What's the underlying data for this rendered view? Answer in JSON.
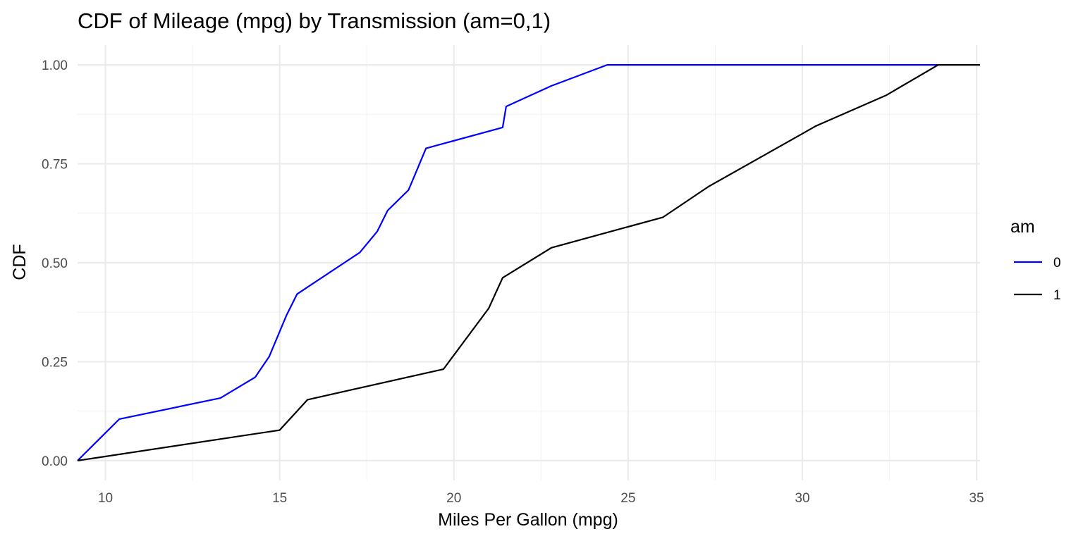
{
  "chart_data": {
    "type": "line",
    "title": "CDF of Mileage (mpg) by Transmission (am=0,1)",
    "xlabel": "Miles Per Gallon (mpg)",
    "ylabel": "CDF",
    "xlim": [
      9.2,
      35.1
    ],
    "ylim": [
      -0.05,
      1.05
    ],
    "x_ticks": [
      10,
      15,
      20,
      25,
      30,
      35
    ],
    "y_ticks": [
      0,
      0.25,
      0.5,
      0.75,
      1
    ],
    "x_tick_labels": [
      "10",
      "15",
      "20",
      "25",
      "30",
      "35"
    ],
    "y_tick_labels": [
      "0.00",
      "0.25",
      "0.50",
      "0.75",
      "1.00"
    ],
    "grid": true,
    "legend": {
      "title": "am",
      "position": "right",
      "entries": [
        {
          "label": "0",
          "color": "#0000ff"
        },
        {
          "label": "1",
          "color": "#000000"
        }
      ]
    },
    "series": [
      {
        "name": "0",
        "color": "#0000ff",
        "x": [
          9.2,
          10.4,
          13.3,
          14.3,
          14.7,
          15.2,
          15.5,
          17.3,
          17.8,
          18.1,
          18.7,
          19.2,
          21.4,
          21.5,
          22.8,
          24.4,
          33.9
        ],
        "y": [
          0.0,
          0.105,
          0.158,
          0.211,
          0.263,
          0.368,
          0.421,
          0.526,
          0.579,
          0.632,
          0.684,
          0.789,
          0.842,
          0.895,
          0.947,
          1.0,
          1.0
        ]
      },
      {
        "name": "1",
        "color": "#000000",
        "x": [
          9.2,
          15.0,
          15.8,
          19.7,
          21.0,
          21.4,
          22.8,
          26.0,
          27.3,
          30.4,
          32.4,
          33.9,
          35.1
        ],
        "y": [
          0.0,
          0.077,
          0.154,
          0.231,
          0.385,
          0.462,
          0.538,
          0.615,
          0.692,
          0.846,
          0.923,
          1.0,
          1.0
        ]
      }
    ]
  }
}
